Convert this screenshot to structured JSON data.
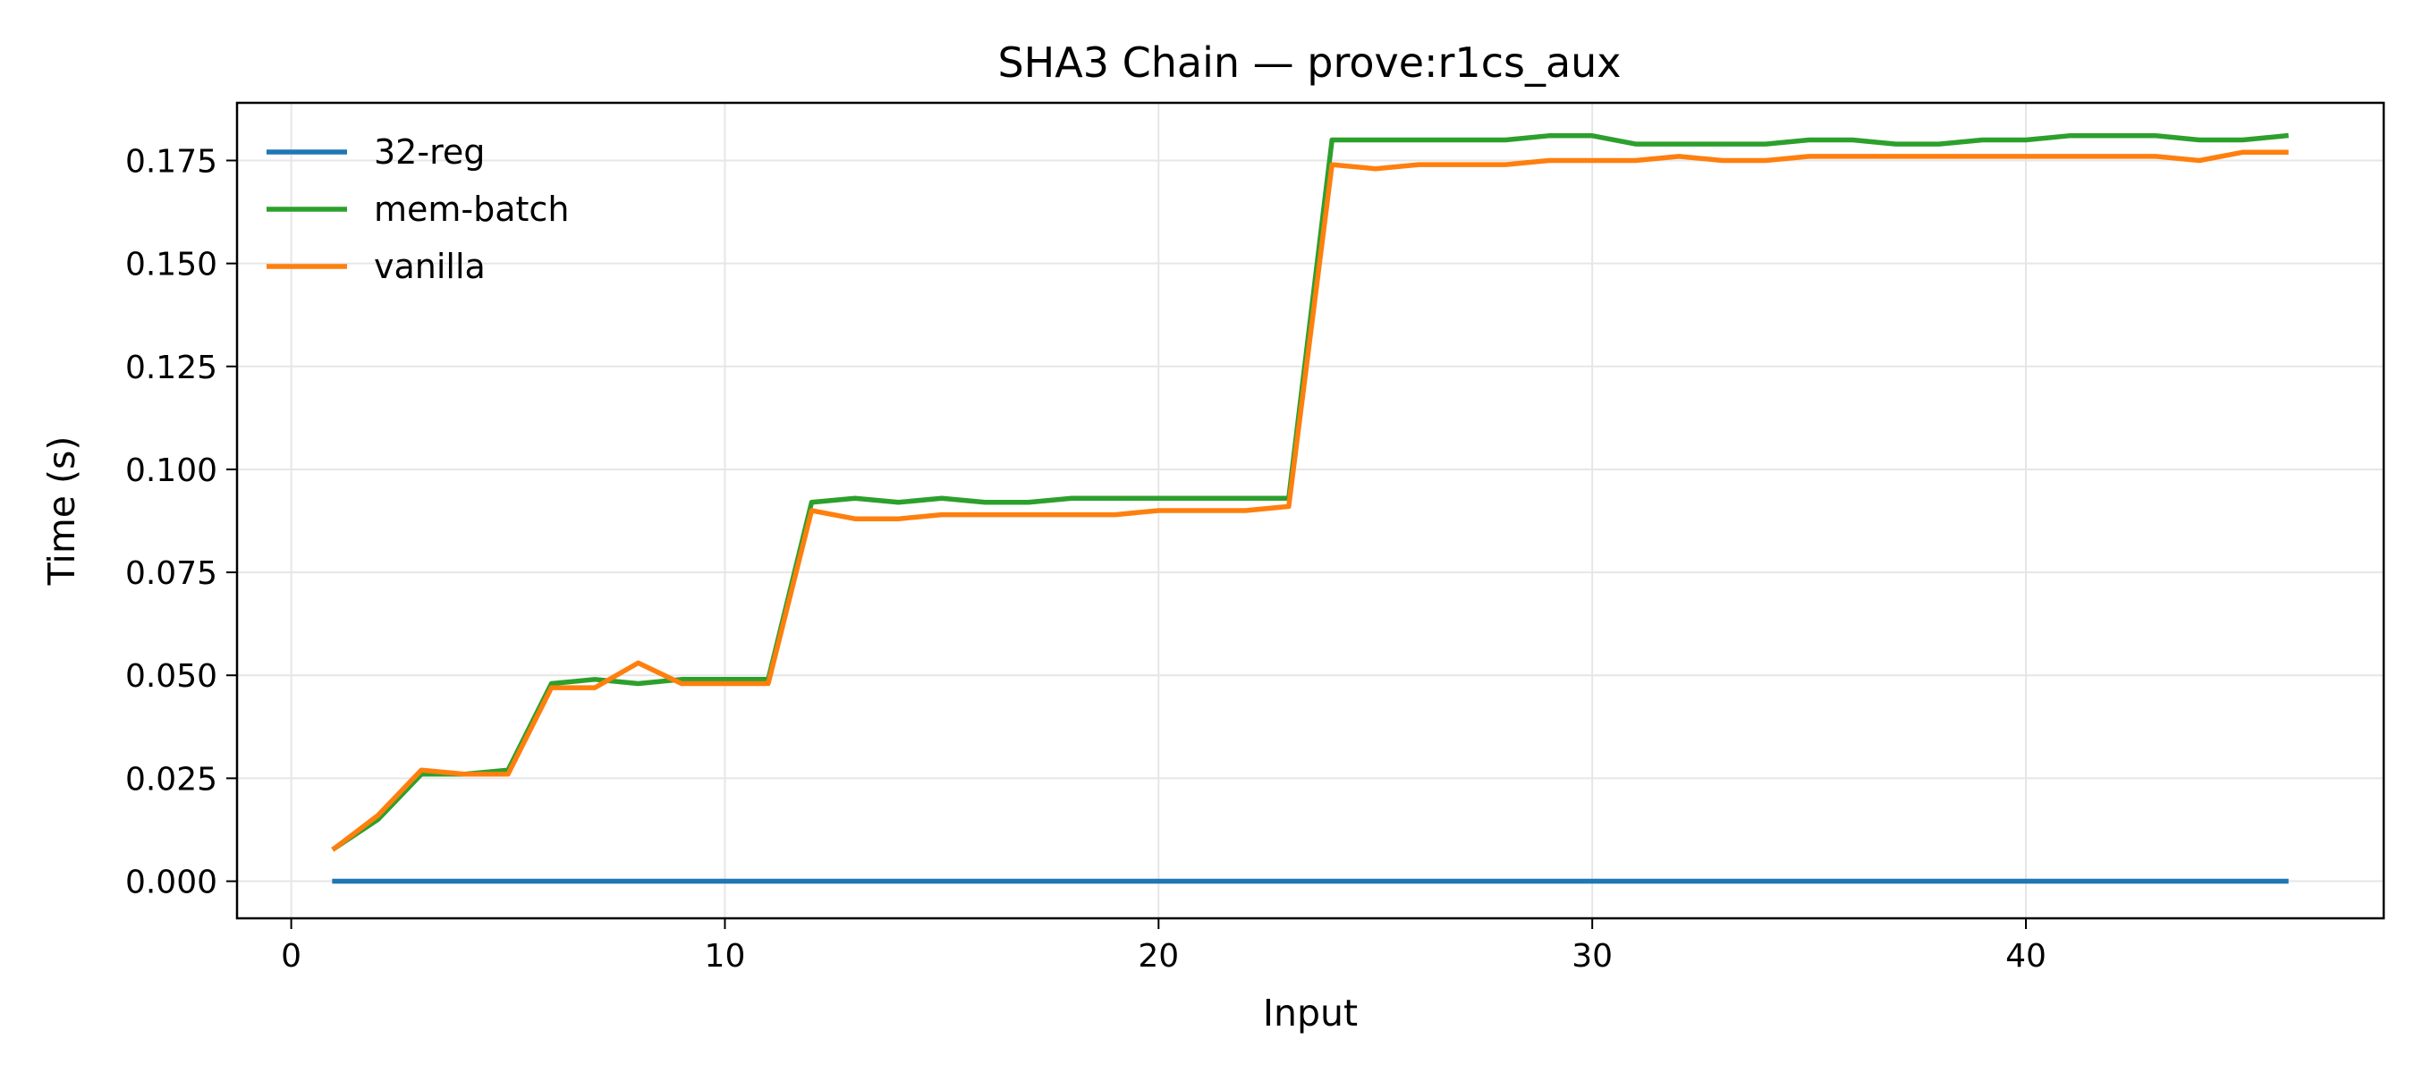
{
  "chart_data": {
    "type": "line",
    "title": "SHA3 Chain — prove:r1cs_aux",
    "xlabel": "Input",
    "ylabel": "Time (s)",
    "xlim": [
      -1.25,
      48.25
    ],
    "ylim": [
      -0.009,
      0.189
    ],
    "xticks": [
      0,
      10,
      20,
      30,
      40
    ],
    "xtick_labels": [
      "0",
      "10",
      "20",
      "30",
      "40"
    ],
    "yticks": [
      0,
      0.025,
      0.05,
      0.075,
      0.1,
      0.125,
      0.15,
      0.175
    ],
    "ytick_labels": [
      "0.000",
      "0.025",
      "0.050",
      "0.075",
      "0.100",
      "0.125",
      "0.150",
      "0.175"
    ],
    "grid": true,
    "legend_position": "top-left",
    "x": [
      1,
      2,
      3,
      4,
      5,
      6,
      7,
      8,
      9,
      10,
      11,
      12,
      13,
      14,
      15,
      16,
      17,
      18,
      19,
      20,
      21,
      22,
      23,
      24,
      25,
      26,
      27,
      28,
      29,
      30,
      31,
      32,
      33,
      34,
      35,
      36,
      37,
      38,
      39,
      40,
      41,
      42,
      43,
      44,
      45,
      46
    ],
    "series": [
      {
        "name": "32-reg",
        "color": "#1f77b4",
        "values": [
          0,
          0,
          0,
          0,
          0,
          0,
          0,
          0,
          0,
          0,
          0,
          0,
          0,
          0,
          0,
          0,
          0,
          0,
          0,
          0,
          0,
          0,
          0,
          0,
          0,
          0,
          0,
          0,
          0,
          0,
          0,
          0,
          0,
          0,
          0,
          0,
          0,
          0,
          0,
          0,
          0,
          0,
          0,
          0,
          0,
          0
        ]
      },
      {
        "name": "mem-batch",
        "color": "#2ca02c",
        "values": [
          0.008,
          0.015,
          0.026,
          0.026,
          0.027,
          0.048,
          0.049,
          0.048,
          0.049,
          0.049,
          0.049,
          0.092,
          0.093,
          0.092,
          0.093,
          0.092,
          0.092,
          0.093,
          0.093,
          0.093,
          0.093,
          0.093,
          0.093,
          0.18,
          0.18,
          0.18,
          0.18,
          0.18,
          0.181,
          0.181,
          0.179,
          0.179,
          0.179,
          0.179,
          0.18,
          0.18,
          0.179,
          0.179,
          0.18,
          0.18,
          0.181,
          0.181,
          0.181,
          0.18,
          0.18,
          0.181
        ]
      },
      {
        "name": "vanilla",
        "color": "#ff7f0e",
        "values": [
          0.008,
          0.016,
          0.027,
          0.026,
          0.026,
          0.047,
          0.047,
          0.053,
          0.048,
          0.048,
          0.048,
          0.09,
          0.088,
          0.088,
          0.089,
          0.089,
          0.089,
          0.089,
          0.089,
          0.09,
          0.09,
          0.09,
          0.091,
          0.174,
          0.173,
          0.174,
          0.174,
          0.174,
          0.175,
          0.175,
          0.175,
          0.176,
          0.175,
          0.175,
          0.176,
          0.176,
          0.176,
          0.176,
          0.176,
          0.176,
          0.176,
          0.176,
          0.176,
          0.175,
          0.177,
          0.177
        ]
      }
    ]
  }
}
